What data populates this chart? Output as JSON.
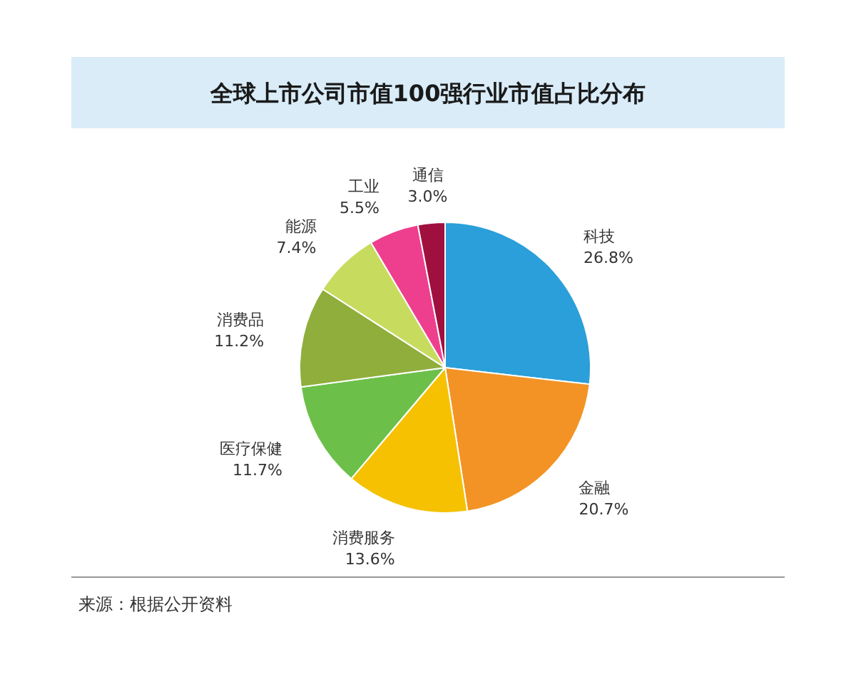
{
  "chart_data": {
    "type": "pie",
    "title": "全球上市公司市值100强行业市值占比分布",
    "categories": [
      "科技",
      "金融",
      "消费服务",
      "医疗保健",
      "消费品",
      "能源",
      "工业",
      "通信"
    ],
    "values": [
      26.8,
      20.7,
      13.6,
      11.7,
      11.2,
      7.4,
      5.5,
      3.0
    ],
    "colors": [
      "#2b9fd9",
      "#f39325",
      "#f5c100",
      "#6cc04a",
      "#8fae3b",
      "#c7dc5e",
      "#ee3f8e",
      "#a0103f"
    ],
    "value_labels": [
      "26.8%",
      "20.7%",
      "13.6%",
      "11.7%",
      "11.2%",
      "7.4%",
      "5.5%",
      "3.0%"
    ],
    "annotations": [
      "来源：根据公开资料"
    ]
  }
}
